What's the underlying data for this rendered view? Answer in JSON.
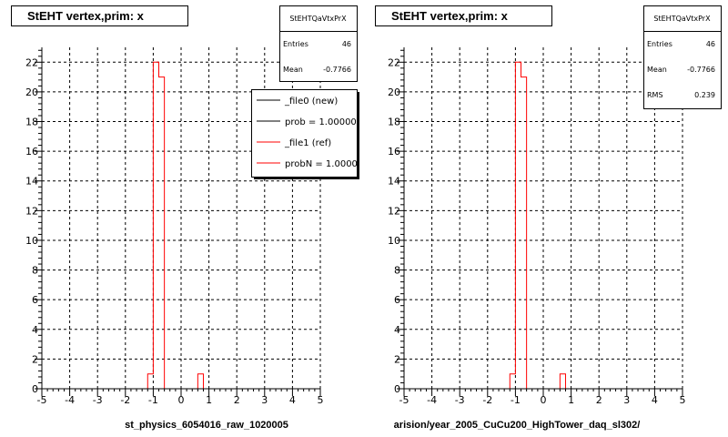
{
  "chart_data": [
    {
      "type": "histogram",
      "title": "StEHT  vertex,prim: x",
      "xlabel": "st_physics_6054016_raw_1020005",
      "xlim": [
        -5,
        5
      ],
      "ylim": [
        0,
        23
      ],
      "x_ticks": [
        "-5",
        "-4",
        "-3",
        "-2",
        "-1",
        "0",
        "1",
        "2",
        "3",
        "4",
        "5"
      ],
      "y_ticks": [
        "0",
        "2",
        "4",
        "6",
        "8",
        "10",
        "12",
        "14",
        "16",
        "18",
        "20",
        "22"
      ],
      "grid": true,
      "bin_width": 0.2,
      "series": [
        {
          "color": "#ff0000",
          "bins": [
            {
              "x0": -1.2,
              "x1": -1.0,
              "y": 1
            },
            {
              "x0": -1.0,
              "x1": -0.8,
              "y": 22
            },
            {
              "x0": -0.8,
              "x1": -0.6,
              "y": 21
            },
            {
              "x0": 0.6,
              "x1": 0.8,
              "y": 1
            }
          ]
        }
      ],
      "stats": {
        "name": "StEHTQaVtxPrX",
        "rows": [
          {
            "label": "Entries",
            "value": "46"
          },
          {
            "label": "Mean",
            "value": "-0.7766"
          }
        ]
      },
      "legend": {
        "placement": "top-right",
        "entries": [
          {
            "label": "_file0 (new)",
            "color": "#000000"
          },
          {
            "label": "prob = 1.000000",
            "color": "#000000"
          },
          {
            "label": "_file1 (ref)",
            "color": "#ff0000"
          },
          {
            "label": "probN = 1.000000",
            "color": "#ff0000"
          }
        ]
      }
    },
    {
      "type": "histogram",
      "title": "StEHT  vertex,prim: x",
      "xlabel": "arision/year_2005_CuCu200_HighTower_daq_sl302/",
      "xlim": [
        -5,
        5
      ],
      "ylim": [
        0,
        23
      ],
      "x_ticks": [
        "-5",
        "-4",
        "-3",
        "-2",
        "-1",
        "0",
        "1",
        "2",
        "3",
        "4",
        "5"
      ],
      "y_ticks": [
        "0",
        "2",
        "4",
        "6",
        "8",
        "10",
        "12",
        "14",
        "16",
        "18",
        "20",
        "22"
      ],
      "grid": true,
      "bin_width": 0.2,
      "series": [
        {
          "color": "#ff0000",
          "bins": [
            {
              "x0": -1.2,
              "x1": -1.0,
              "y": 1
            },
            {
              "x0": -1.0,
              "x1": -0.8,
              "y": 22
            },
            {
              "x0": -0.8,
              "x1": -0.6,
              "y": 21
            },
            {
              "x0": 0.6,
              "x1": 0.8,
              "y": 1
            }
          ]
        }
      ],
      "stats": {
        "name": "StEHTQaVtxPrX",
        "rows": [
          {
            "label": "Entries",
            "value": "46"
          },
          {
            "label": "Mean",
            "value": "-0.7766"
          },
          {
            "label": "RMS",
            "value": "0.239"
          }
        ]
      }
    }
  ]
}
